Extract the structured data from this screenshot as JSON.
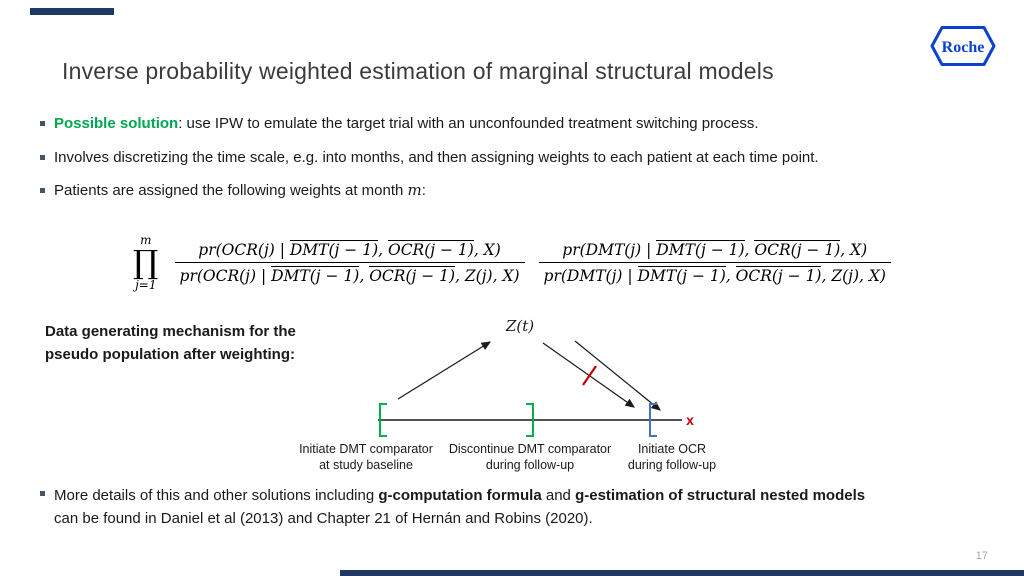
{
  "slide": {
    "title": "Inverse probability weighted estimation of marginal structural models",
    "page_number": "17",
    "logo_text": "Roche"
  },
  "colors": {
    "accent_bar": "#203864",
    "roche_blue": "#0B41CD",
    "highlight_green": "#00A650",
    "bracket_green": "#00B050",
    "bracket_blue": "#4472C4",
    "cross_red": "#C00000"
  },
  "bullets": {
    "bullet1": [
      {
        "text": "Possible solution",
        "bold": true,
        "color": "#00A650"
      },
      {
        "text": ": use IPW to emulate the target trial with an unconfounded treatment switching process."
      }
    ],
    "bullet2": [
      {
        "text": "Involves discretizing the time scale, e.g. into months, and then assigning weights to each patient at each time point."
      }
    ],
    "bullet3": [
      {
        "text": "Patients are assigned the following weights at month "
      },
      {
        "text": "m",
        "math": true
      },
      {
        "text": ":"
      }
    ]
  },
  "formula": {
    "product": {
      "top": "m",
      "symbol": "∏",
      "bottom": "j=1"
    },
    "frac1": {
      "num": [
        {
          "text": "pr(OCR(j) | "
        },
        {
          "text": "DMT(j − 1)",
          "overline": true
        },
        {
          "text": ", "
        },
        {
          "text": "OCR(j − 1)",
          "overline": true
        },
        {
          "text": ", X)"
        }
      ],
      "den": [
        {
          "text": "pr(OCR(j) | "
        },
        {
          "text": "DMT(j − 1)",
          "overline": true
        },
        {
          "text": ", "
        },
        {
          "text": "OCR(j − 1)",
          "overline": true
        },
        {
          "text": ", Z(j), X)"
        }
      ]
    },
    "frac2": {
      "num": [
        {
          "text": "pr(DMT(j) | "
        },
        {
          "text": "DMT(j − 1)",
          "overline": true
        },
        {
          "text": ", "
        },
        {
          "text": "OCR(j − 1)",
          "overline": true
        },
        {
          "text": ", X)"
        }
      ],
      "den": [
        {
          "text": "pr(DMT(j) | "
        },
        {
          "text": "DMT(j − 1)",
          "overline": true
        },
        {
          "text": ", "
        },
        {
          "text": "OCR(j − 1)",
          "overline": true
        },
        {
          "text": ", Z(j), X)"
        }
      ]
    }
  },
  "diagram": {
    "caption_line1": "Data generating mechanism for the",
    "caption_line2": "pseudo population after weighting:",
    "z_label": "Z(t)",
    "timeline_end_marker": "x",
    "labels": {
      "start": {
        "line1": "Initiate DMT comparator",
        "line2": "at study baseline"
      },
      "discontinue": {
        "line1": "Discontinue DMT comparator",
        "line2": "during follow-up"
      },
      "initiate_ocr": {
        "line1": "Initiate OCR",
        "line2": "during follow-up"
      }
    }
  },
  "closing_bullet": [
    {
      "text": "More details of this and other solutions including "
    },
    {
      "text": "g-computation formula",
      "bold": true
    },
    {
      "text": " and "
    },
    {
      "text": "g-estimation of structural nested models",
      "bold": true
    },
    {
      "break": true
    },
    {
      "text": "can be found in Daniel et al (2013) and Chapter 21 of Hernán and Robins (2020)."
    }
  ]
}
